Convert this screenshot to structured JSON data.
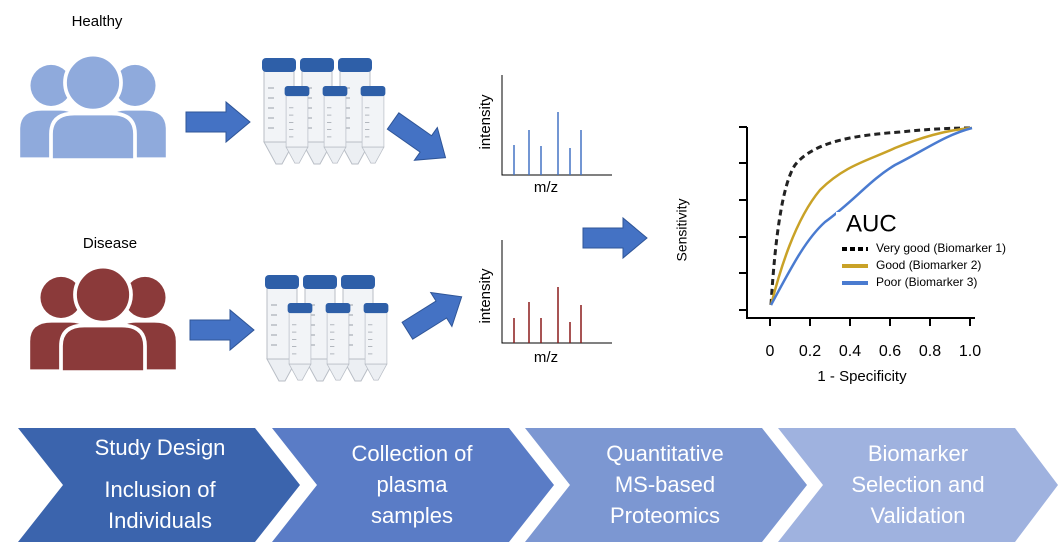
{
  "groups": [
    {
      "label": "Healthy"
    },
    {
      "label": "Disease"
    }
  ],
  "spectrum": {
    "y_label": "intensity",
    "x_label": "m/z"
  },
  "roc": {
    "y_label": "Sensitivity",
    "x_label": "1 - Specificity",
    "xticks": [
      "0",
      "0.2",
      "0.4",
      "0.6",
      "0.8",
      "1.0"
    ],
    "legend_title": "AUC",
    "legend": [
      "Very good (Biomarker 1)",
      "Good (Biomarker 2)",
      "Poor (Biomarker 3)"
    ]
  },
  "steps": [
    [
      "Study Design",
      "Inclusion of",
      "Individuals"
    ],
    [
      "Collection of",
      "plasma",
      "samples"
    ],
    [
      "Quantitative",
      "MS-based",
      "Proteomics"
    ],
    [
      "Biomarker",
      "Selection and",
      "Validation"
    ]
  ]
}
